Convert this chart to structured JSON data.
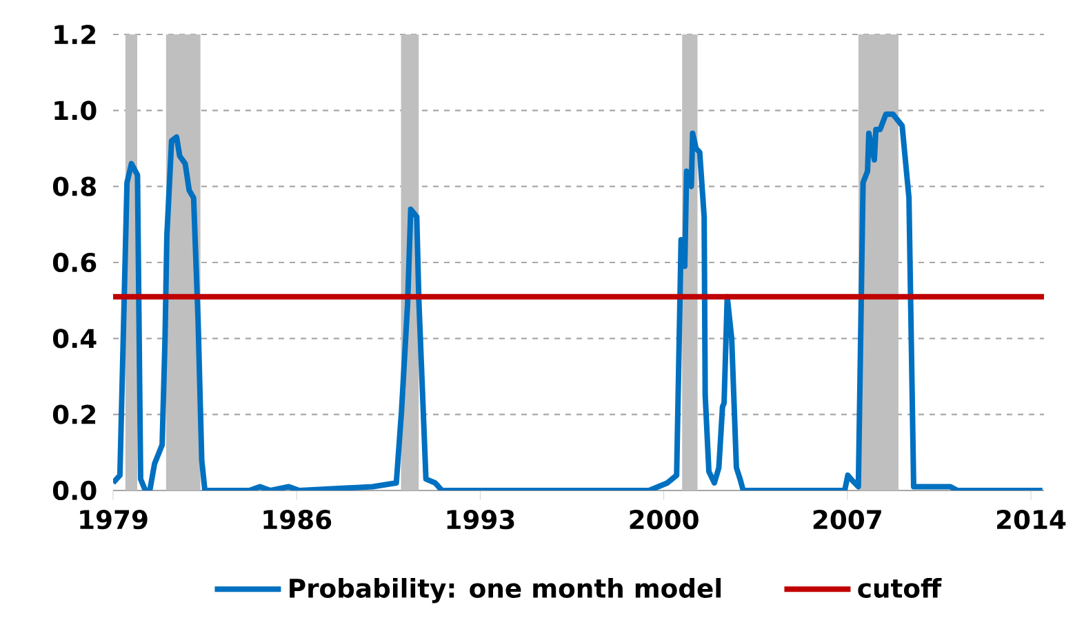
{
  "chart_data": {
    "type": "line",
    "xlim": [
      1979,
      2014.5
    ],
    "xticks": [
      1979,
      1986,
      1993,
      2000,
      2007,
      2014
    ],
    "ylim": [
      0,
      1.2
    ],
    "yticks": [
      {
        "value": 0,
        "label": "0.0"
      },
      {
        "value": 0.2,
        "label": "0.2"
      },
      {
        "value": 0.4,
        "label": "0.4"
      },
      {
        "value": 0.6,
        "label": "0.6"
      },
      {
        "value": 0.8,
        "label": "0.8"
      },
      {
        "value": 1.0,
        "label": "1.0"
      },
      {
        "value": 1.2,
        "label": "1.2"
      }
    ],
    "grid": "y",
    "legend": "bottom",
    "marker": "none",
    "line_style": "solid",
    "bands": [
      {
        "axis": "x",
        "from": 1979.47,
        "to": 1979.92,
        "color": "#bfbfbf"
      },
      {
        "axis": "x",
        "from": 1981.02,
        "to": 1982.33,
        "color": "#bfbfbf"
      },
      {
        "axis": "x",
        "from": 1989.98,
        "to": 1990.66,
        "color": "#bfbfbf"
      },
      {
        "axis": "x",
        "from": 2000.7,
        "to": 2001.29,
        "color": "#bfbfbf"
      },
      {
        "axis": "x",
        "from": 2007.42,
        "to": 2008.95,
        "color": "#bfbfbf"
      }
    ],
    "series": [
      {
        "name": "Probability: one month model",
        "color": "#0070c0",
        "x": [
          1979.0,
          1979.26,
          1979.53,
          1979.7,
          1979.93,
          1980.05,
          1980.23,
          1980.4,
          1980.58,
          1980.87,
          1980.98,
          1981.05,
          1981.23,
          1981.42,
          1981.54,
          1981.75,
          1981.9,
          1982.07,
          1982.24,
          1982.38,
          1982.5,
          1984.2,
          1984.6,
          1985.0,
          1985.7,
          1986.1,
          1988.9,
          1989.8,
          1990.0,
          1990.23,
          1990.35,
          1990.58,
          1990.66,
          1990.93,
          1991.28,
          1991.54,
          1999.44,
          2000.14,
          2000.49,
          2000.66,
          2000.8,
          2000.87,
          2001.05,
          2001.1,
          2001.23,
          2001.37,
          2001.54,
          2001.58,
          2001.72,
          2001.93,
          2002.1,
          2002.24,
          2002.3,
          2002.42,
          2002.59,
          2002.77,
          2002.91,
          2003.03,
          2006.9,
          2007.02,
          2007.14,
          2007.42,
          2007.6,
          2007.77,
          2007.82,
          2008.03,
          2008.09,
          2008.25,
          2008.47,
          2008.74,
          2009.09,
          2009.35,
          2009.53,
          2010.23,
          2010.93,
          2011.2,
          2014.44
        ],
        "values": [
          0.02,
          0.04,
          0.81,
          0.86,
          0.83,
          0.03,
          0.0,
          0.0,
          0.07,
          0.12,
          0.4,
          0.67,
          0.92,
          0.93,
          0.88,
          0.86,
          0.79,
          0.77,
          0.45,
          0.08,
          0.0,
          0.0,
          0.01,
          0.0,
          0.01,
          0.0,
          0.01,
          0.02,
          0.21,
          0.49,
          0.74,
          0.72,
          0.5,
          0.03,
          0.02,
          0.0,
          0.0,
          0.02,
          0.04,
          0.66,
          0.59,
          0.84,
          0.8,
          0.94,
          0.9,
          0.89,
          0.72,
          0.25,
          0.05,
          0.02,
          0.06,
          0.22,
          0.23,
          0.51,
          0.4,
          0.06,
          0.03,
          0.0,
          0.0,
          0.04,
          0.03,
          0.01,
          0.81,
          0.84,
          0.94,
          0.87,
          0.95,
          0.95,
          0.99,
          0.99,
          0.96,
          0.77,
          0.01,
          0.01,
          0.01,
          0.0,
          0.0
        ]
      },
      {
        "name": "cutoff",
        "color": "#c00000",
        "x": [
          1979,
          2014.5
        ],
        "values": [
          0.51,
          0.51
        ]
      }
    ]
  }
}
